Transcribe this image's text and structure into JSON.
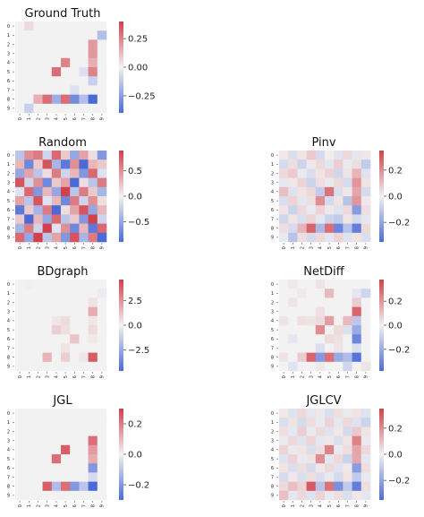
{
  "palette": {
    "neg": "#4a6ad6",
    "mid": "#f2f2f2",
    "pos": "#d2404b"
  },
  "chart_data": [
    {
      "type": "heatmap",
      "title": "Ground Truth",
      "xticks": [
        "0",
        "1",
        "2",
        "3",
        "4",
        "5",
        "6",
        "7",
        "8",
        "9"
      ],
      "yticks": [
        "0",
        "1",
        "2",
        "3",
        "4",
        "5",
        "6",
        "7",
        "8",
        "9"
      ],
      "colorbar": {
        "vmin": -0.4,
        "vmax": 0.4,
        "ticks": [
          0.25,
          0.0,
          -0.25
        ],
        "labels": [
          "0.25",
          "0.00",
          "−0.25"
        ]
      },
      "values": [
        [
          0,
          0.05,
          0,
          0,
          0,
          0,
          0,
          0,
          0,
          0
        ],
        [
          0,
          0,
          0,
          0,
          0,
          0,
          0,
          0,
          0,
          -0.15
        ],
        [
          0,
          0,
          0,
          0,
          0,
          0,
          0,
          0,
          0.2,
          0
        ],
        [
          0,
          0,
          0,
          0,
          0,
          0,
          0,
          0,
          0.2,
          0
        ],
        [
          0,
          0,
          0,
          0,
          0,
          0.25,
          0,
          0,
          0.15,
          0
        ],
        [
          0,
          0,
          0,
          0,
          0.3,
          0,
          0,
          -0.05,
          0.25,
          0
        ],
        [
          0,
          0,
          0,
          0,
          0,
          0,
          0,
          0,
          -0.1,
          0
        ],
        [
          0,
          0,
          0,
          0,
          0,
          0,
          -0.05,
          0,
          0,
          0
        ],
        [
          0,
          0,
          0.15,
          0.3,
          -0.2,
          0.3,
          -0.3,
          -0.15,
          -0.4,
          0
        ],
        [
          0,
          -0.1,
          0,
          0,
          0,
          0,
          0,
          0,
          0,
          0
        ]
      ]
    },
    {
      "type": "heatmap",
      "title": "Random",
      "xticks": [
        "0",
        "1",
        "2",
        "3",
        "4",
        "5",
        "6",
        "7",
        "8",
        "9"
      ],
      "yticks": [
        "0",
        "1",
        "2",
        "3",
        "4",
        "5",
        "6",
        "7",
        "8",
        "9"
      ],
      "colorbar": {
        "vmin": -0.9,
        "vmax": 0.9,
        "ticks": [
          0.5,
          0.0,
          -0.5
        ],
        "labels": [
          "0.5",
          "0.0",
          "−0.5"
        ]
      },
      "values": [
        [
          -0.3,
          0.5,
          0.6,
          -0.2,
          0.7,
          0.2,
          -0.5,
          0.4,
          0.1,
          -0.6
        ],
        [
          0.3,
          -0.7,
          0.2,
          0.8,
          -0.4,
          -0.8,
          0.5,
          -0.9,
          0.3,
          0.2
        ],
        [
          -0.5,
          0.4,
          -0.3,
          0.1,
          0.6,
          -0.2,
          0.3,
          -0.6,
          0.7,
          -0.1
        ],
        [
          0.8,
          -0.2,
          0.5,
          -0.7,
          0.2,
          0.4,
          -0.9,
          0.1,
          -0.3,
          0.6
        ],
        [
          -0.1,
          0.7,
          -0.6,
          0.3,
          -0.5,
          0.9,
          -0.3,
          0.6,
          0.2,
          -0.4
        ],
        [
          0.4,
          -0.3,
          0.8,
          -0.1,
          0.3,
          -0.7,
          0.6,
          -0.2,
          0.5,
          0.1
        ],
        [
          -0.8,
          0.2,
          -0.4,
          0.6,
          -0.9,
          0.1,
          0.4,
          0.8,
          -0.5,
          0.3
        ],
        [
          0.2,
          -0.9,
          0.3,
          -0.5,
          0.7,
          -0.3,
          0.2,
          -0.6,
          0.9,
          -0.2
        ],
        [
          -0.4,
          0.6,
          -0.2,
          0.9,
          -0.1,
          0.5,
          -0.7,
          0.3,
          -0.8,
          0.7
        ],
        [
          0.7,
          -0.5,
          0.9,
          -0.3,
          0.4,
          -0.6,
          0.8,
          -0.4,
          0.6,
          -0.9
        ]
      ]
    },
    {
      "type": "heatmap",
      "title": "Pinv",
      "xticks": [
        "0",
        "1",
        "2",
        "3",
        "4",
        "5",
        "6",
        "7",
        "8",
        "9"
      ],
      "yticks": [
        "0",
        "1",
        "2",
        "3",
        "4",
        "5",
        "6",
        "7",
        "8",
        "9"
      ],
      "colorbar": {
        "vmin": -0.35,
        "vmax": 0.35,
        "ticks": [
          0.2,
          0.0,
          -0.2
        ],
        "labels": [
          "0.2",
          "0.0",
          "−0.2"
        ]
      },
      "values": [
        [
          0.02,
          -0.05,
          0.03,
          0.08,
          -0.06,
          0.01,
          -0.04,
          0.05,
          -0.03,
          0.02
        ],
        [
          -0.06,
          0.04,
          -0.08,
          0.02,
          0.05,
          -0.03,
          0.07,
          -0.02,
          0.04,
          -0.1
        ],
        [
          0.05,
          0.08,
          -0.02,
          -0.05,
          0.03,
          0.06,
          -0.07,
          0.03,
          0.12,
          -0.04
        ],
        [
          -0.03,
          0.02,
          0.06,
          -0.08,
          0.04,
          -0.02,
          0.05,
          -0.06,
          0.18,
          0.03
        ],
        [
          0.1,
          -0.04,
          0.03,
          0.05,
          -0.1,
          0.25,
          -0.05,
          0.02,
          0.15,
          -0.06
        ],
        [
          -0.05,
          0.06,
          -0.03,
          0.04,
          0.2,
          -0.06,
          0.03,
          -0.12,
          0.18,
          0.02
        ],
        [
          0.03,
          -0.08,
          0.05,
          -0.02,
          0.06,
          0.02,
          -0.04,
          0.05,
          -0.22,
          0.04
        ],
        [
          -0.07,
          0.03,
          -0.05,
          0.06,
          -0.03,
          -0.08,
          -0.1,
          0.03,
          -0.06,
          -0.03
        ],
        [
          0.04,
          -0.06,
          0.12,
          0.28,
          -0.15,
          0.26,
          -0.28,
          -0.12,
          -0.3,
          0.05
        ],
        [
          -0.02,
          -0.12,
          0.04,
          -0.06,
          0.05,
          -0.03,
          0.06,
          -0.04,
          0.03,
          -0.05
        ]
      ]
    },
    {
      "type": "heatmap",
      "title": "BDgraph",
      "xticks": [
        "0",
        "1",
        "2",
        "3",
        "4",
        "5",
        "6",
        "7",
        "8",
        "9"
      ],
      "yticks": [
        "0",
        "1",
        "2",
        "3",
        "4",
        "5",
        "6",
        "7",
        "8",
        "9"
      ],
      "colorbar": {
        "vmin": -4.6,
        "vmax": 4.6,
        "ticks": [
          2.5,
          0.0,
          -2.5
        ],
        "labels": [
          "2.5",
          "0.0",
          "−2.5"
        ]
      },
      "values": [
        [
          0,
          0.1,
          0,
          0,
          0,
          0,
          0,
          0,
          0,
          0
        ],
        [
          0,
          0,
          0,
          0,
          0,
          0,
          0,
          0,
          0,
          -0.2
        ],
        [
          0,
          0,
          0,
          0,
          0,
          0,
          0,
          0,
          0.4,
          0
        ],
        [
          0,
          0,
          0,
          0,
          0,
          0,
          0,
          0,
          1.8,
          0
        ],
        [
          0,
          0,
          0,
          0,
          0.3,
          0.6,
          0,
          0,
          0.3,
          0
        ],
        [
          0,
          0,
          0,
          0,
          0.9,
          0.5,
          0,
          0,
          0.6,
          0
        ],
        [
          0,
          0,
          0,
          0,
          0,
          0,
          1.2,
          0,
          0.2,
          0
        ],
        [
          0,
          0,
          0,
          0,
          0,
          0.4,
          0,
          0,
          0,
          0
        ],
        [
          0,
          0,
          0,
          1.6,
          0,
          0.9,
          0,
          0.3,
          3.9,
          0
        ],
        [
          0,
          0,
          0,
          0,
          0,
          0,
          0,
          0,
          0,
          0
        ]
      ]
    },
    {
      "type": "heatmap",
      "title": "NetDiff",
      "xticks": [
        "0",
        "1",
        "2",
        "3",
        "4",
        "5",
        "6",
        "7",
        "8",
        "9"
      ],
      "yticks": [
        "0",
        "1",
        "2",
        "3",
        "4",
        "5",
        "6",
        "7",
        "8",
        "9"
      ],
      "colorbar": {
        "vmin": -0.38,
        "vmax": 0.38,
        "ticks": [
          0.2,
          0.0,
          -0.2
        ],
        "labels": [
          "0.2",
          "0.0",
          "−0.2"
        ]
      },
      "values": [
        [
          0,
          0.02,
          0,
          0,
          0.03,
          0,
          0,
          0,
          0,
          0
        ],
        [
          0,
          0,
          0.02,
          0,
          0,
          0.12,
          0,
          0,
          -0.03,
          -0.08
        ],
        [
          0,
          0.03,
          0,
          0,
          0,
          0,
          0,
          0,
          0.08,
          0
        ],
        [
          0,
          0,
          0,
          0,
          0.04,
          0,
          0,
          0,
          0.3,
          0
        ],
        [
          0.03,
          0,
          0.04,
          0.03,
          0.05,
          0.18,
          0,
          0.12,
          -0.12,
          0
        ],
        [
          0,
          0,
          0,
          0,
          0.22,
          0,
          0.05,
          -0.05,
          -0.2,
          0
        ],
        [
          0,
          -0.03,
          0,
          0,
          0,
          0.05,
          0.04,
          0,
          -0.3,
          0
        ],
        [
          0,
          0,
          0,
          0,
          -0.05,
          0,
          0.03,
          0,
          -0.05,
          0
        ],
        [
          0.03,
          0,
          0.08,
          0.3,
          -0.25,
          0.28,
          -0.2,
          -0.15,
          -0.35,
          0
        ],
        [
          0,
          -0.04,
          0,
          0,
          0.02,
          0,
          0,
          -0.08,
          0,
          0.03
        ]
      ]
    },
    {
      "type": "heatmap",
      "title": "JGL",
      "xticks": [
        "0",
        "1",
        "2",
        "3",
        "4",
        "5",
        "6",
        "7",
        "8",
        "9"
      ],
      "yticks": [
        "0",
        "1",
        "2",
        "3",
        "4",
        "5",
        "6",
        "7",
        "8",
        "9"
      ],
      "colorbar": {
        "vmin": -0.3,
        "vmax": 0.3,
        "ticks": [
          0.2,
          0.0,
          -0.2
        ],
        "labels": [
          "0.2",
          "0.0",
          "−0.2"
        ]
      },
      "values": [
        [
          0,
          0,
          0,
          0,
          0,
          0,
          0,
          0,
          0,
          0
        ],
        [
          0,
          0,
          0,
          0,
          0,
          0,
          0,
          0,
          0,
          0
        ],
        [
          0,
          0,
          0,
          0,
          0,
          0,
          0,
          0,
          0,
          0
        ],
        [
          0,
          0,
          0,
          0,
          0,
          0,
          0,
          0,
          0.22,
          0
        ],
        [
          0,
          0,
          0,
          0,
          0,
          0.25,
          0,
          0,
          0.15,
          0
        ],
        [
          0,
          0,
          0,
          0,
          0.22,
          0,
          0,
          0,
          0.12,
          0
        ],
        [
          0,
          0,
          0,
          0,
          0,
          0,
          0,
          0,
          -0.2,
          0
        ],
        [
          0,
          0,
          0,
          0,
          0,
          0,
          0,
          0,
          -0.05,
          0
        ],
        [
          0,
          0,
          0,
          0.25,
          -0.12,
          0.22,
          -0.2,
          -0.1,
          -0.3,
          0
        ],
        [
          0,
          0,
          0,
          0,
          0,
          0,
          0,
          0,
          0,
          0
        ]
      ]
    },
    {
      "type": "heatmap",
      "title": "JGLCV",
      "xticks": [
        "0",
        "1",
        "2",
        "3",
        "4",
        "5",
        "6",
        "7",
        "8",
        "9"
      ],
      "yticks": [
        "0",
        "1",
        "2",
        "3",
        "4",
        "5",
        "6",
        "7",
        "8",
        "9"
      ],
      "colorbar": {
        "vmin": -0.35,
        "vmax": 0.35,
        "ticks": [
          0.2,
          0.0,
          -0.2
        ],
        "labels": [
          "0.2",
          "0.0",
          "−0.2"
        ]
      },
      "values": [
        [
          0.02,
          -0.04,
          0.05,
          -0.03,
          0.02,
          -0.05,
          0.04,
          -0.02,
          0.03,
          -0.04
        ],
        [
          -0.05,
          0.03,
          -0.06,
          0.04,
          -0.02,
          0.06,
          -0.03,
          0.05,
          -0.04,
          -0.08
        ],
        [
          0.04,
          -0.03,
          0.07,
          -0.02,
          0.05,
          -0.04,
          0.02,
          -0.06,
          0.08,
          0.03
        ],
        [
          -0.02,
          0.05,
          -0.04,
          0.06,
          -0.03,
          0.02,
          -0.05,
          0.03,
          0.22,
          -0.02
        ],
        [
          0.06,
          -0.02,
          0.03,
          -0.05,
          0.04,
          0.22,
          -0.02,
          0.04,
          0.15,
          0.05
        ],
        [
          -0.04,
          0.06,
          -0.02,
          0.03,
          0.2,
          -0.03,
          0.05,
          -0.08,
          0.15,
          -0.03
        ],
        [
          0.03,
          -0.05,
          0.04,
          -0.06,
          0.02,
          0.05,
          -0.04,
          0.02,
          -0.22,
          0.04
        ],
        [
          -0.06,
          0.02,
          -0.05,
          0.04,
          -0.05,
          -0.02,
          -0.06,
          0.03,
          -0.1,
          -0.02
        ],
        [
          0.05,
          0.1,
          0.06,
          0.3,
          -0.12,
          0.25,
          -0.25,
          -0.1,
          -0.3,
          0.04
        ],
        [
          0.1,
          -0.03,
          0.05,
          -0.04,
          0.06,
          -0.02,
          0.04,
          -0.05,
          0.02,
          -0.03
        ]
      ]
    }
  ]
}
